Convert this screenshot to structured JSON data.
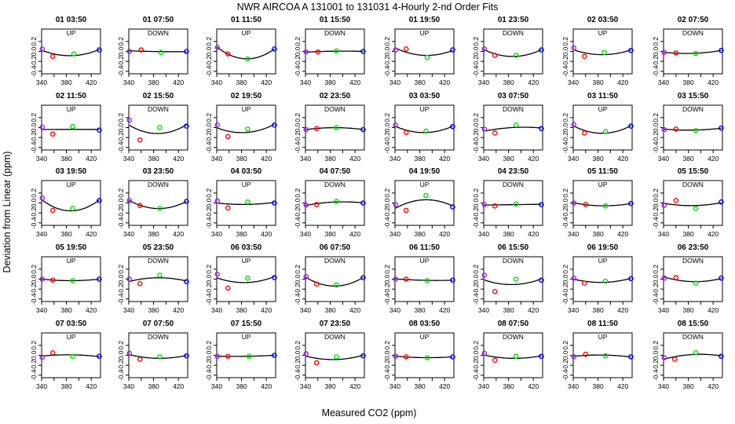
{
  "chart_data": {
    "type": "scatter",
    "title": "NWR   AIRCOA A   131001 to 131031   4-Hourly 2-nd Order Fits",
    "xlabel": "Measured CO2 (ppm)",
    "ylabel": "Deviation from Linear (ppm)",
    "xlim": [
      340,
      435
    ],
    "ylim": [
      -0.45,
      0.45
    ],
    "xticks": [
      340,
      380,
      420
    ],
    "yticks": [
      -0.4,
      -0.2,
      0.0,
      0.2
    ],
    "ytick_labels": [
      "-0.4",
      "-0.2",
      "0.0",
      "0.2"
    ],
    "grid": false,
    "layout": {
      "rows": 5,
      "cols": 8
    },
    "marker_colors": {
      "purple": "#a020f0",
      "red": "#ff0000",
      "green": "#00dd00",
      "blue": "#0000ff"
    },
    "panels": [
      {
        "time": "01 03:50",
        "dir": "UP",
        "points": [
          [
            341,
            0.05
          ],
          [
            358,
            -0.1
          ],
          [
            392,
            -0.05
          ],
          [
            433,
            0.03
          ]
        ]
      },
      {
        "time": "01 07:50",
        "dir": "DOWN",
        "points": [
          [
            341,
            0.0
          ],
          [
            360,
            0.03
          ],
          [
            392,
            -0.02
          ],
          [
            433,
            0.0
          ]
        ]
      },
      {
        "time": "01 11:50",
        "dir": "UP",
        "points": [
          [
            341,
            0.08
          ],
          [
            358,
            -0.05
          ],
          [
            390,
            -0.15
          ],
          [
            433,
            0.05
          ]
        ]
      },
      {
        "time": "01 15:50",
        "dir": "DOWN",
        "points": [
          [
            341,
            -0.01
          ],
          [
            360,
            -0.01
          ],
          [
            390,
            0.01
          ],
          [
            433,
            0.0
          ]
        ]
      },
      {
        "time": "01 19:50",
        "dir": "UP",
        "points": [
          [
            341,
            0.03
          ],
          [
            358,
            0.05
          ],
          [
            392,
            -0.12
          ],
          [
            433,
            0.03
          ]
        ]
      },
      {
        "time": "01 23:50",
        "dir": "DOWN",
        "points": [
          [
            341,
            0.05
          ],
          [
            358,
            -0.08
          ],
          [
            392,
            -0.08
          ],
          [
            433,
            0.03
          ]
        ]
      },
      {
        "time": "02 03:50",
        "dir": "UP",
        "points": [
          [
            341,
            0.07
          ],
          [
            358,
            -0.1
          ],
          [
            390,
            -0.02
          ],
          [
            433,
            0.02
          ]
        ]
      },
      {
        "time": "02 07:50",
        "dir": "DOWN",
        "points": [
          [
            341,
            -0.02
          ],
          [
            360,
            -0.03
          ],
          [
            392,
            -0.04
          ],
          [
            433,
            0.02
          ]
        ]
      },
      {
        "time": "02 11:50",
        "dir": "UP",
        "points": [
          [
            341,
            0.01
          ],
          [
            358,
            -0.13
          ],
          [
            390,
            0.02
          ],
          [
            433,
            -0.05
          ]
        ]
      },
      {
        "time": "02 15:50",
        "dir": "DOWN",
        "points": [
          [
            341,
            0.15
          ],
          [
            358,
            -0.25
          ],
          [
            390,
            0.0
          ],
          [
            433,
            0.03
          ]
        ]
      },
      {
        "time": "02 19:50",
        "dir": "UP",
        "points": [
          [
            341,
            0.05
          ],
          [
            358,
            -0.18
          ],
          [
            390,
            -0.03
          ],
          [
            433,
            0.05
          ]
        ]
      },
      {
        "time": "02 23:50",
        "dir": "DOWN",
        "points": [
          [
            341,
            -0.04
          ],
          [
            358,
            -0.02
          ],
          [
            390,
            0.0
          ],
          [
            433,
            -0.04
          ]
        ]
      },
      {
        "time": "03 03:50",
        "dir": "UP",
        "points": [
          [
            341,
            0.05
          ],
          [
            358,
            -0.1
          ],
          [
            390,
            -0.07
          ],
          [
            433,
            0.02
          ]
        ]
      },
      {
        "time": "03 07:50",
        "dir": "DOWN",
        "points": [
          [
            341,
            -0.03
          ],
          [
            358,
            -0.11
          ],
          [
            392,
            0.05
          ],
          [
            433,
            -0.02
          ]
        ]
      },
      {
        "time": "03 11:50",
        "dir": "UP",
        "points": [
          [
            341,
            0.06
          ],
          [
            358,
            -0.11
          ],
          [
            392,
            -0.08
          ],
          [
            433,
            0.03
          ]
        ]
      },
      {
        "time": "03 15:50",
        "dir": "DOWN",
        "points": [
          [
            341,
            -0.04
          ],
          [
            360,
            -0.03
          ],
          [
            392,
            -0.06
          ],
          [
            433,
            -0.01
          ]
        ]
      },
      {
        "time": "03 19:50",
        "dir": "UP",
        "points": [
          [
            341,
            0.1
          ],
          [
            358,
            -0.15
          ],
          [
            390,
            -0.11
          ],
          [
            433,
            0.05
          ]
        ]
      },
      {
        "time": "03 23:50",
        "dir": "DOWN",
        "points": [
          [
            341,
            0.05
          ],
          [
            358,
            -0.05
          ],
          [
            390,
            -0.11
          ],
          [
            433,
            0.03
          ]
        ]
      },
      {
        "time": "04 03:50",
        "dir": "UP",
        "points": [
          [
            341,
            0.04
          ],
          [
            358,
            -0.1
          ],
          [
            390,
            0.02
          ],
          [
            433,
            0.0
          ]
        ]
      },
      {
        "time": "04 07:50",
        "dir": "DOWN",
        "points": [
          [
            341,
            -0.04
          ],
          [
            358,
            -0.03
          ],
          [
            390,
            0.03
          ],
          [
            433,
            0.0
          ]
        ]
      },
      {
        "time": "04 19:50",
        "dir": "UP",
        "points": [
          [
            341,
            -0.03
          ],
          [
            358,
            -0.15
          ],
          [
            390,
            0.15
          ],
          [
            433,
            -0.08
          ]
        ]
      },
      {
        "time": "04 23:50",
        "dir": "DOWN",
        "points": [
          [
            341,
            -0.03
          ],
          [
            358,
            -0.06
          ],
          [
            392,
            -0.02
          ],
          [
            433,
            -0.03
          ]
        ]
      },
      {
        "time": "05 11:50",
        "dir": "UP",
        "points": [
          [
            341,
            0.0
          ],
          [
            360,
            -0.03
          ],
          [
            392,
            -0.06
          ],
          [
            433,
            -0.01
          ]
        ]
      },
      {
        "time": "05 15:50",
        "dir": "DOWN",
        "points": [
          [
            341,
            -0.05
          ],
          [
            360,
            0.05
          ],
          [
            392,
            -0.11
          ],
          [
            433,
            0.02
          ]
        ]
      },
      {
        "time": "05 19:50",
        "dir": "UP",
        "points": [
          [
            341,
            0.0
          ],
          [
            358,
            -0.02
          ],
          [
            390,
            -0.03
          ],
          [
            433,
            0.0
          ]
        ]
      },
      {
        "time": "05 23:50",
        "dir": "DOWN",
        "points": [
          [
            341,
            0.0
          ],
          [
            358,
            -0.09
          ],
          [
            390,
            0.08
          ],
          [
            433,
            -0.05
          ]
        ]
      },
      {
        "time": "06 03:50",
        "dir": "UP",
        "points": [
          [
            341,
            0.1
          ],
          [
            358,
            -0.18
          ],
          [
            390,
            0.02
          ],
          [
            433,
            0.03
          ]
        ]
      },
      {
        "time": "06 07:50",
        "dir": "DOWN",
        "points": [
          [
            341,
            0.05
          ],
          [
            358,
            -0.1
          ],
          [
            390,
            -0.12
          ],
          [
            433,
            0.03
          ]
        ]
      },
      {
        "time": "06 11:50",
        "dir": "UP",
        "points": [
          [
            341,
            0.0
          ],
          [
            358,
            0.0
          ],
          [
            392,
            -0.03
          ],
          [
            433,
            -0.02
          ]
        ]
      },
      {
        "time": "06 15:50",
        "dir": "DOWN",
        "points": [
          [
            341,
            0.08
          ],
          [
            358,
            -0.25
          ],
          [
            392,
            0.0
          ],
          [
            433,
            -0.02
          ]
        ]
      },
      {
        "time": "06 19:50",
        "dir": "UP",
        "points": [
          [
            341,
            0.02
          ],
          [
            358,
            -0.08
          ],
          [
            392,
            -0.04
          ],
          [
            433,
            0.01
          ]
        ]
      },
      {
        "time": "06 23:50",
        "dir": "DOWN",
        "points": [
          [
            341,
            0.02
          ],
          [
            360,
            0.03
          ],
          [
            392,
            -0.08
          ],
          [
            433,
            0.02
          ]
        ]
      },
      {
        "time": "07 03:50",
        "dir": "UP",
        "points": [
          [
            341,
            -0.04
          ],
          [
            358,
            0.05
          ],
          [
            390,
            -0.02
          ],
          [
            433,
            -0.02
          ]
        ]
      },
      {
        "time": "07 07:50",
        "dir": "DOWN",
        "points": [
          [
            341,
            0.04
          ],
          [
            358,
            -0.08
          ],
          [
            390,
            -0.03
          ],
          [
            433,
            -0.01
          ]
        ]
      },
      {
        "time": "07 15:50",
        "dir": "UP",
        "points": [
          [
            341,
            -0.02
          ],
          [
            358,
            -0.02
          ],
          [
            392,
            -0.02
          ],
          [
            433,
            0.0
          ]
        ]
      },
      {
        "time": "07 23:50",
        "dir": "DOWN",
        "points": [
          [
            341,
            0.03
          ],
          [
            358,
            -0.15
          ],
          [
            390,
            -0.03
          ],
          [
            433,
            -0.01
          ]
        ]
      },
      {
        "time": "08 03:50",
        "dir": "UP",
        "points": [
          [
            341,
            -0.02
          ],
          [
            358,
            -0.03
          ],
          [
            392,
            -0.05
          ],
          [
            433,
            -0.03
          ]
        ]
      },
      {
        "time": "08 07:50",
        "dir": "DOWN",
        "points": [
          [
            341,
            0.04
          ],
          [
            358,
            -0.1
          ],
          [
            392,
            -0.02
          ],
          [
            433,
            -0.02
          ]
        ]
      },
      {
        "time": "08 11:50",
        "dir": "UP",
        "points": [
          [
            341,
            -0.03
          ],
          [
            360,
            0.02
          ],
          [
            392,
            -0.01
          ],
          [
            433,
            -0.03
          ]
        ]
      },
      {
        "time": "08 15:50",
        "dir": "DOWN",
        "points": [
          [
            341,
            -0.05
          ],
          [
            358,
            -0.08
          ],
          [
            392,
            0.05
          ],
          [
            433,
            -0.02
          ]
        ]
      }
    ]
  }
}
